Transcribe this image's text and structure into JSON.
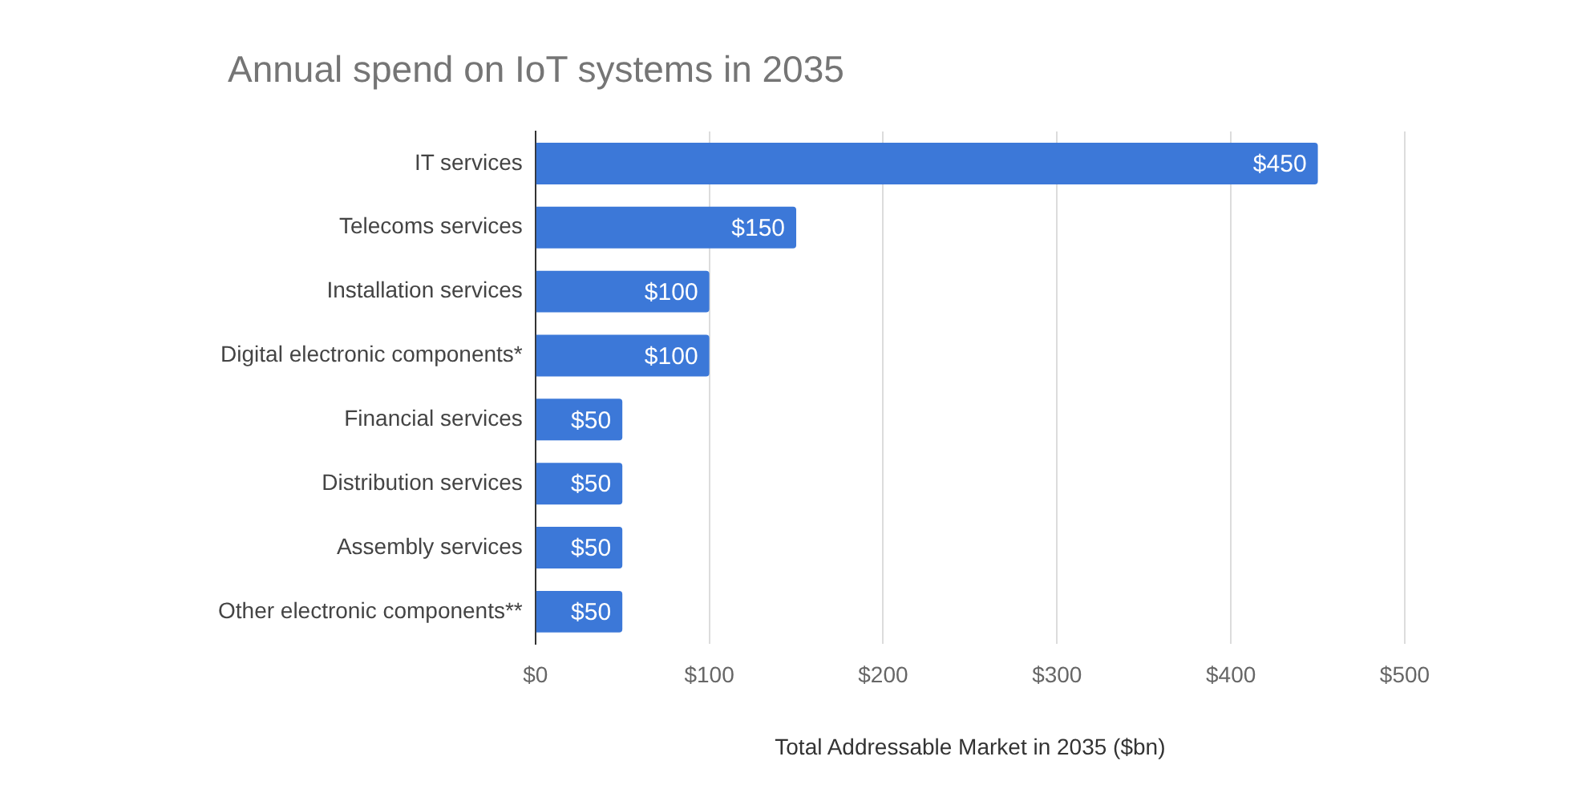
{
  "chart_data": {
    "type": "bar",
    "orientation": "horizontal",
    "title": "Annual spend on IoT systems in 2035",
    "xlabel": "Total Addressable Market in 2035 ($bn)",
    "categories": [
      "IT services",
      "Telecoms services",
      "Installation services",
      "Digital electronic components*",
      "Financial services",
      "Distribution services",
      "Assembly services",
      "Other electronic components**"
    ],
    "values": [
      450,
      150,
      100,
      100,
      50,
      50,
      50,
      50
    ],
    "value_labels": [
      "$450",
      "$150",
      "$100",
      "$100",
      "$50",
      "$50",
      "$50",
      "$50"
    ],
    "color": "#3c78d8",
    "xlim": [
      0,
      500
    ],
    "xticks": [
      {
        "value": 0,
        "label": "$0"
      },
      {
        "value": 100,
        "label": "$100"
      },
      {
        "value": 200,
        "label": "$200"
      },
      {
        "value": 300,
        "label": "$300"
      },
      {
        "value": 400,
        "label": "$400"
      },
      {
        "value": 500,
        "label": "$500"
      }
    ],
    "grid": "x",
    "legend": false
  }
}
